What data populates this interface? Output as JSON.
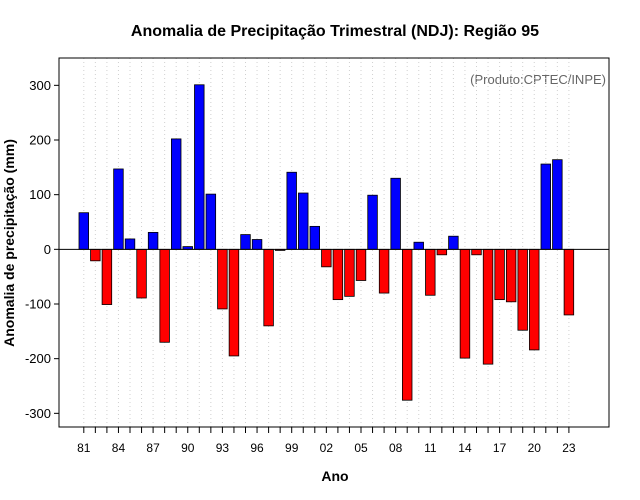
{
  "chart_data": {
    "type": "bar",
    "title": "Anomalia de Precipitação Trimestral (NDJ): Região 95",
    "xlabel": "Ano",
    "ylabel": "Anomalia de precipitação (mm)",
    "annotation": "(Produto:CPTEC/INPE)",
    "ylim": [
      -325,
      350
    ],
    "y_ticks": [
      -300,
      -200,
      -100,
      0,
      100,
      200,
      300
    ],
    "x_tick_labels": [
      "81",
      "84",
      "87",
      "90",
      "93",
      "96",
      "99",
      "02",
      "05",
      "08",
      "11",
      "14",
      "17",
      "20",
      "23"
    ],
    "x_tick_every": 3,
    "grid": true,
    "positive_color": "#0000ff",
    "negative_color": "#ff0000",
    "categories": [
      "1981",
      "1982",
      "1983",
      "1984",
      "1985",
      "1986",
      "1987",
      "1988",
      "1989",
      "1990",
      "1991",
      "1992",
      "1993",
      "1994",
      "1995",
      "1996",
      "1997",
      "1998",
      "1999",
      "2000",
      "2001",
      "2002",
      "2003",
      "2004",
      "2005",
      "2006",
      "2007",
      "2008",
      "2009",
      "2010",
      "2011",
      "2012",
      "2013",
      "2014",
      "2015",
      "2016",
      "2017",
      "2018",
      "2019",
      "2020",
      "2021",
      "2022",
      "2023"
    ],
    "values": [
      67,
      -21,
      -101,
      147,
      19,
      -89,
      31,
      -170,
      202,
      5,
      301,
      101,
      -109,
      -195,
      27,
      18,
      -140,
      -2,
      141,
      103,
      42,
      -32,
      -92,
      -86,
      -57,
      99,
      -80,
      130,
      -276,
      13,
      -84,
      -10,
      24,
      -199,
      -10,
      -210,
      -92,
      -96,
      -148,
      -184,
      156,
      164,
      -120
    ]
  }
}
